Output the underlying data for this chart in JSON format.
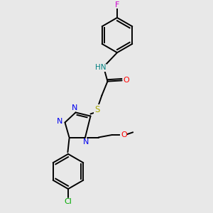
{
  "background_color": "#e8e8e8",
  "bond_color": "#000000",
  "atom_colors": {
    "F": "#cc00cc",
    "N": "#0000ee",
    "O": "#ff0000",
    "S": "#aaaa00",
    "Cl": "#00aa00",
    "H": "#008080",
    "C": "#000000"
  },
  "figsize": [
    3.0,
    3.0
  ],
  "dpi": 100
}
